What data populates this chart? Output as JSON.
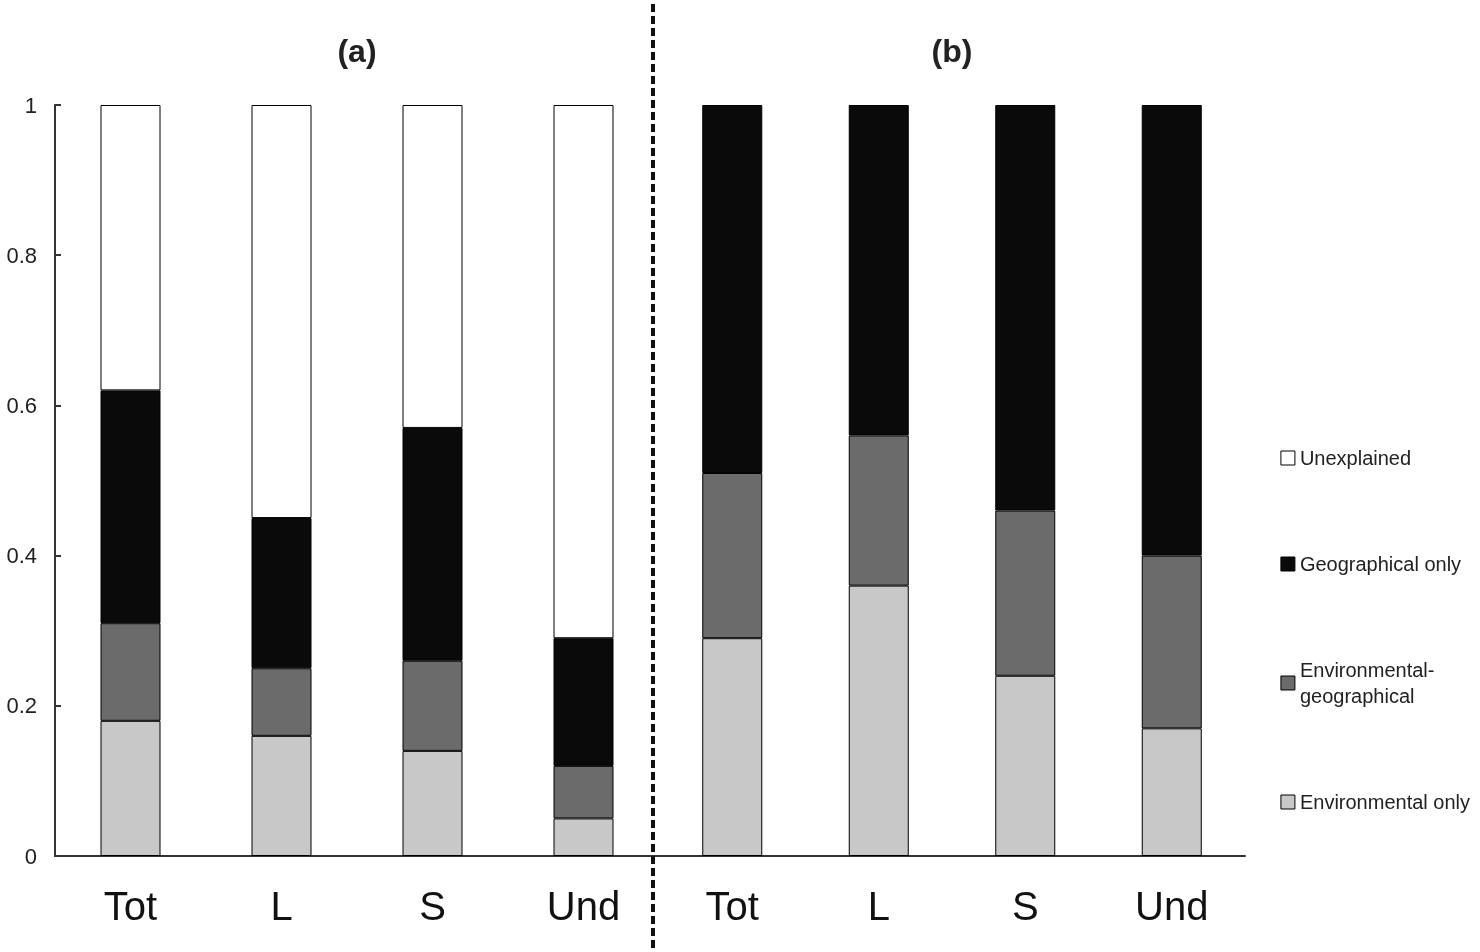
{
  "chart_data": [
    {
      "type": "bar",
      "title": "(a)",
      "stacked": true,
      "categories": [
        "Tot",
        "L",
        "S",
        "Und"
      ],
      "ylim": [
        0,
        1
      ],
      "yticks": [
        0,
        0.2,
        0.4,
        0.6,
        0.8,
        1
      ],
      "grid": false,
      "legend": false,
      "series": [
        {
          "color": "#c8c8c8",
          "values": [
            0.18,
            0.16,
            0.14,
            0.05
          ]
        },
        {
          "color": "#6b6b6b",
          "values": [
            0.13,
            0.09,
            0.12,
            0.07
          ]
        },
        {
          "color": "#0a0a0a",
          "values": [
            0.31,
            0.2,
            0.31,
            0.17
          ]
        },
        {
          "color": "#ffffff",
          "values": [
            0.38,
            0.55,
            0.43,
            0.71
          ]
        }
      ]
    },
    {
      "type": "bar",
      "title": "(b)",
      "stacked": true,
      "categories": [
        "Tot",
        "L",
        "S",
        "Und"
      ],
      "ylim": [
        0,
        1
      ],
      "yticks": [
        0,
        0.2,
        0.4,
        0.6,
        0.8,
        1
      ],
      "grid": false,
      "legend": "right",
      "tick_labels": "x",
      "series": [
        {
          "name": "Environmental only",
          "color": "#c8c8c8",
          "values": [
            0.29,
            0.36,
            0.24,
            0.17
          ]
        },
        {
          "name": "Environmental-geographical",
          "color": "#6b6b6b",
          "values": [
            0.22,
            0.2,
            0.22,
            0.23
          ]
        },
        {
          "name": "Geographical only",
          "color": "#0a0a0a",
          "values": [
            0.49,
            0.44,
            0.54,
            0.6
          ]
        },
        {
          "name": "Unexplained",
          "color": "#ffffff",
          "values": [
            null,
            null,
            null,
            null
          ]
        }
      ]
    }
  ]
}
